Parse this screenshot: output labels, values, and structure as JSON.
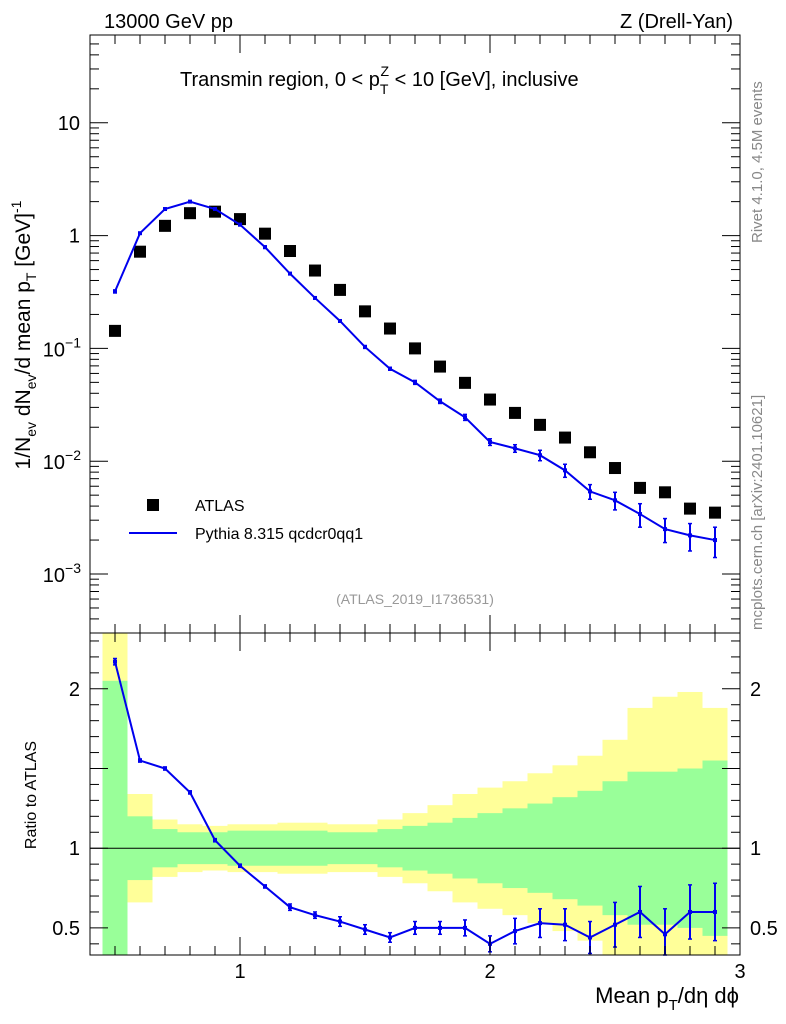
{
  "header": {
    "left": "13000 GeV pp",
    "right": "Z (Drell-Yan)"
  },
  "side_labels": {
    "version": "Rivet 4.1.0,  4.5M events",
    "site": "mcplots.cern.ch [arXiv:2401.10621]"
  },
  "chart_data": [
    {
      "type": "scatter",
      "title": "Transmin region, 0 < p_T^Z < 10 [GeV], inclusive",
      "analysis_label": "(ATLAS_2019_I1736531)",
      "ylabel": "1/N_ev dN_ev/d mean p_T [GeV]^-1",
      "xlabel": "",
      "yscale": "log",
      "xlim": [
        0.4,
        3.0
      ],
      "ylim": [
        0.0003,
        60
      ],
      "yticks": [
        {
          "value": 0.001,
          "mantissa": "10",
          "exp": "−3"
        },
        {
          "value": 0.01,
          "mantissa": "10",
          "exp": "−2"
        },
        {
          "value": 0.1,
          "mantissa": "10",
          "exp": "−1"
        },
        {
          "value": 1,
          "label": "1"
        },
        {
          "value": 10,
          "label": "10"
        }
      ],
      "legend": {
        "placement": "bottom-left",
        "data_label": "ATLAS",
        "mc_label": "Pythia 8.315 qcdcr0qq1"
      },
      "series": [
        {
          "name": "ATLAS",
          "style": "marker",
          "color": "#000000",
          "x": [
            0.5,
            0.6,
            0.7,
            0.8,
            0.9,
            1.0,
            1.1,
            1.2,
            1.3,
            1.4,
            1.5,
            1.6,
            1.7,
            1.8,
            1.9,
            2.0,
            2.1,
            2.2,
            2.3,
            2.4,
            2.5,
            2.6,
            2.7,
            2.8,
            2.9
          ],
          "y": [
            0.143,
            0.72,
            1.22,
            1.58,
            1.63,
            1.4,
            1.04,
            0.73,
            0.49,
            0.33,
            0.213,
            0.15,
            0.1,
            0.069,
            0.0495,
            0.0352,
            0.0268,
            0.021,
            0.0162,
            0.012,
            0.0087,
            0.0058,
            0.0053,
            0.0038,
            0.0035
          ]
        },
        {
          "name": "Pythia 8.315 qcdcr0qq1",
          "style": "line",
          "color": "#0000ee",
          "x": [
            0.5,
            0.6,
            0.7,
            0.8,
            0.9,
            1.0,
            1.1,
            1.2,
            1.3,
            1.4,
            1.5,
            1.6,
            1.7,
            1.8,
            1.9,
            2.0,
            2.1,
            2.2,
            2.3,
            2.4,
            2.5,
            2.6,
            2.7,
            2.8,
            2.9
          ],
          "y": [
            0.32,
            1.05,
            1.72,
            2.0,
            1.72,
            1.25,
            0.79,
            0.46,
            0.28,
            0.175,
            0.103,
            0.066,
            0.05,
            0.034,
            0.0245,
            0.0148,
            0.013,
            0.0113,
            0.0083,
            0.0054,
            0.0045,
            0.0034,
            0.0025,
            0.0022,
            0.002
          ],
          "err": [
            0.01,
            0.02,
            0.03,
            0.03,
            0.03,
            0.03,
            0.02,
            0.01,
            0.006,
            0.004,
            0.003,
            0.002,
            0.002,
            0.0015,
            0.0015,
            0.001,
            0.001,
            0.0012,
            0.0011,
            0.0008,
            0.0008,
            0.0008,
            0.0006,
            0.0006,
            0.0006
          ]
        }
      ]
    },
    {
      "type": "line",
      "ylabel": "Ratio to ATLAS",
      "xlabel": "Mean p_T/dη dϕ",
      "xlim": [
        0.4,
        3.0
      ],
      "ylim": [
        0.33,
        2.35
      ],
      "xticks": [
        {
          "value": 1,
          "label": "1"
        },
        {
          "value": 2,
          "label": "2"
        },
        {
          "value": 3,
          "label": "3"
        }
      ],
      "yticks": [
        {
          "value": 0.5,
          "label": "0.5"
        },
        {
          "value": 1,
          "label": "1"
        },
        {
          "value": 2,
          "label": "2"
        }
      ],
      "bands": {
        "bin_edges": [
          0.45,
          0.55,
          0.65,
          0.75,
          0.85,
          0.95,
          1.05,
          1.15,
          1.25,
          1.35,
          1.45,
          1.55,
          1.65,
          1.75,
          1.85,
          1.95,
          2.05,
          2.15,
          2.25,
          2.35,
          2.45,
          2.55,
          2.65,
          2.75,
          2.85,
          2.95
        ],
        "stat": [
          1.05,
          0.2,
          0.12,
          0.1,
          0.1,
          0.11,
          0.11,
          0.11,
          0.11,
          0.1,
          0.1,
          0.12,
          0.14,
          0.16,
          0.19,
          0.22,
          0.25,
          0.28,
          0.32,
          0.36,
          0.42,
          0.48,
          0.48,
          0.5,
          0.55
        ],
        "total": [
          1.45,
          0.34,
          0.18,
          0.15,
          0.14,
          0.15,
          0.15,
          0.16,
          0.16,
          0.15,
          0.15,
          0.18,
          0.22,
          0.27,
          0.34,
          0.38,
          0.42,
          0.47,
          0.52,
          0.58,
          0.68,
          0.88,
          0.95,
          0.98,
          0.88
        ],
        "stat_color": "#99ff99",
        "total_color": "#ffff99"
      },
      "series": [
        {
          "name": "Pythia 8.315 qcdcr0qq1 / ATLAS",
          "color": "#0000ee",
          "x": [
            0.5,
            0.6,
            0.7,
            0.8,
            0.9,
            1.0,
            1.1,
            1.2,
            1.3,
            1.4,
            1.5,
            1.6,
            1.7,
            1.8,
            1.9,
            2.0,
            2.1,
            2.2,
            2.3,
            2.4,
            2.5,
            2.6,
            2.7,
            2.8,
            2.9
          ],
          "y": [
            2.17,
            1.55,
            1.5,
            1.35,
            1.05,
            0.89,
            0.76,
            0.63,
            0.58,
            0.54,
            0.49,
            0.44,
            0.5,
            0.5,
            0.5,
            0.4,
            0.48,
            0.53,
            0.52,
            0.44,
            0.52,
            0.6,
            0.46,
            0.6,
            0.6
          ],
          "err": [
            0.02,
            0.01,
            0.01,
            0.01,
            0.01,
            0.01,
            0.01,
            0.02,
            0.02,
            0.03,
            0.03,
            0.03,
            0.04,
            0.04,
            0.05,
            0.05,
            0.08,
            0.09,
            0.1,
            0.1,
            0.14,
            0.16,
            0.16,
            0.17,
            0.18
          ]
        }
      ]
    }
  ]
}
